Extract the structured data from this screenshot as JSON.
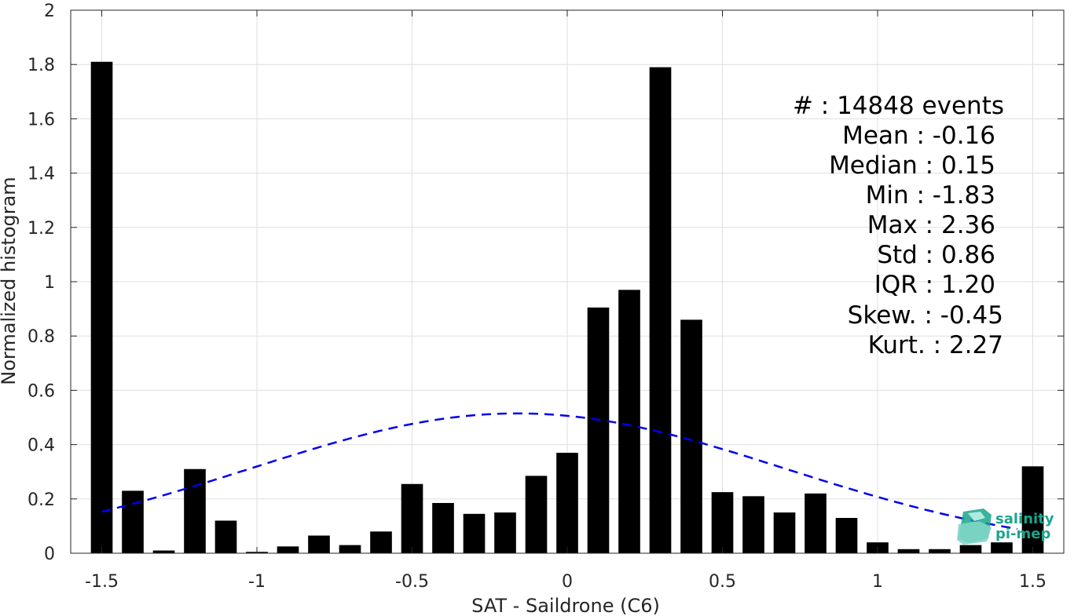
{
  "chart_data": {
    "type": "bar",
    "xlabel": "SAT - Saildrone (C6)",
    "ylabel": "Normalized histogram",
    "xlim": [
      -1.6,
      1.6
    ],
    "ylim": [
      0,
      2
    ],
    "grid": true,
    "xticks": [
      -1.5,
      -1,
      -0.5,
      0,
      0.5,
      1,
      1.5
    ],
    "xtick_labels": [
      "-1.5",
      "-1",
      "-0.5",
      "0",
      "0.5",
      "1",
      "1.5"
    ],
    "yticks": [
      0,
      0.2,
      0.4,
      0.6,
      0.8,
      1,
      1.2,
      1.4,
      1.6,
      1.8,
      2
    ],
    "ytick_labels": [
      "0",
      "0.2",
      "0.4",
      "0.6",
      "0.8",
      "1",
      "1.2",
      "1.4",
      "1.6",
      "1.8",
      "2"
    ],
    "bar_width": 0.07,
    "bar_color": "#000000",
    "x": [
      -1.5,
      -1.4,
      -1.3,
      -1.2,
      -1.1,
      -1.0,
      -0.9,
      -0.8,
      -0.7,
      -0.6,
      -0.5,
      -0.4,
      -0.3,
      -0.2,
      -0.1,
      0.0,
      0.1,
      0.2,
      0.3,
      0.4,
      0.5,
      0.6,
      0.7,
      0.8,
      0.9,
      1.0,
      1.1,
      1.2,
      1.3,
      1.4,
      1.5
    ],
    "values": [
      1.81,
      0.23,
      0.01,
      0.31,
      0.12,
      0.005,
      0.025,
      0.065,
      0.03,
      0.08,
      0.255,
      0.185,
      0.145,
      0.15,
      0.285,
      0.37,
      0.905,
      0.97,
      1.79,
      0.86,
      0.225,
      0.21,
      0.15,
      0.22,
      0.13,
      0.04,
      0.015,
      0.015,
      0.03,
      0.04,
      0.32
    ],
    "fit_curve": {
      "style": "dashed",
      "color": "#0000ee",
      "mean": -0.16,
      "std": 0.86,
      "x_range": [
        -1.5,
        1.45
      ]
    }
  },
  "stats": {
    "count_label": "#  : 14848 events",
    "mean": "Mean : -0.16",
    "median": "Median : 0.15",
    "min": "Min : -1.83",
    "max": "Max : 2.36",
    "std": "Std : 0.86",
    "iqr": "IQR : 1.20",
    "skew": "Skew. : -0.45",
    "kurt": "Kurt. : 2.27"
  },
  "logo": {
    "line1": "salinity",
    "line2": "pi-mep",
    "color": "#1aa58c"
  }
}
